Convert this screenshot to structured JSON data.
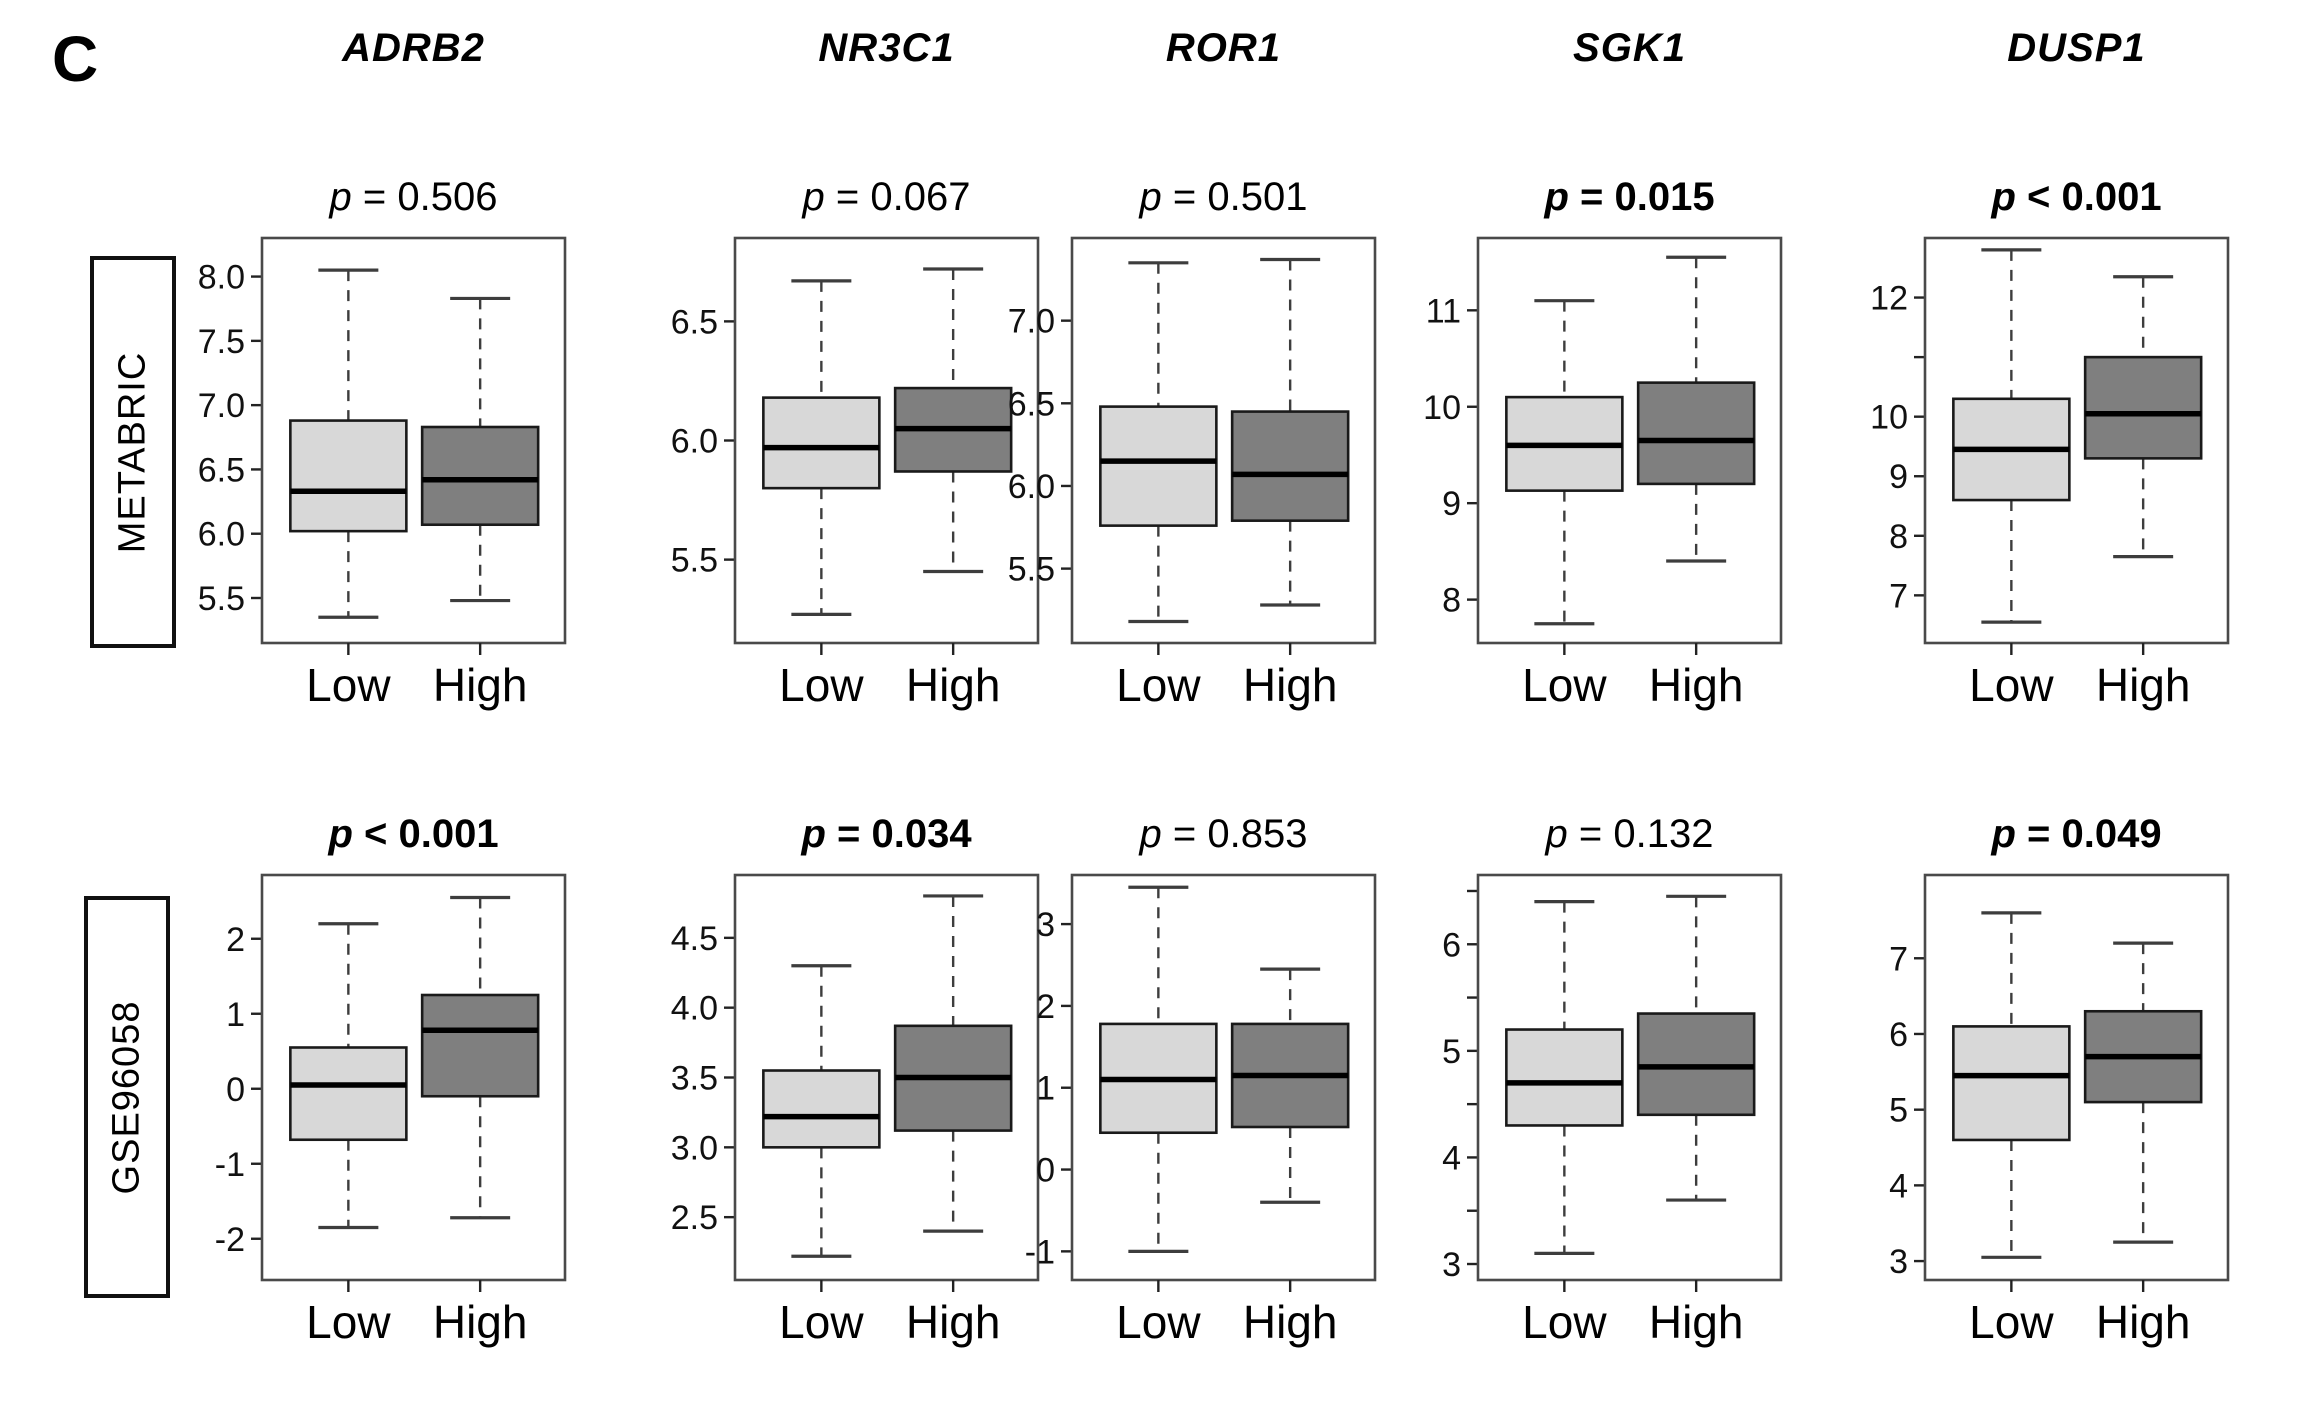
{
  "panel_label": "C",
  "header": {
    "genes": [
      "ADRB2",
      "NR3C1",
      "ROR1",
      "SGK1",
      "DUSP1"
    ]
  },
  "rows": [
    {
      "label": "METABRIC"
    },
    {
      "label": "GSE96058"
    }
  ],
  "chart_data": {
    "type": "boxplot",
    "categories": [
      "Low",
      "High"
    ],
    "legend_position": "none",
    "grid": false,
    "colors": {
      "low_fill": "#d8d8d8",
      "high_fill": "#7f7f7f",
      "median": "#000000",
      "frame": "#4a4a4a",
      "whisker": "#3d3d3d"
    },
    "plots": [
      {
        "gene": "ADRB2",
        "dataset": "METABRIC",
        "p_italic": "p",
        "p_rest": " = 0.506",
        "p_bold": false,
        "ylim": [
          5.15,
          8.3
        ],
        "yticks": [
          {
            "v": 5.5,
            "label": "5.5"
          },
          {
            "v": 6.0,
            "label": "6.0"
          },
          {
            "v": 6.5,
            "label": "6.5"
          },
          {
            "v": 7.0,
            "label": "7.0"
          },
          {
            "v": 7.5,
            "label": "7.5"
          },
          {
            "v": 8.0,
            "label": "8.0"
          }
        ],
        "groups": [
          {
            "label": "Low",
            "min": 5.35,
            "q1": 6.02,
            "median": 6.33,
            "q3": 6.88,
            "max": 8.05
          },
          {
            "label": "High",
            "min": 5.48,
            "q1": 6.07,
            "median": 6.42,
            "q3": 6.83,
            "max": 7.83
          }
        ]
      },
      {
        "gene": "NR3C1",
        "dataset": "METABRIC",
        "p_italic": "p",
        "p_rest": " = 0.067",
        "p_bold": false,
        "ylim": [
          5.15,
          6.85
        ],
        "yticks": [
          {
            "v": 5.5,
            "label": "5.5"
          },
          {
            "v": 6.0,
            "label": "6.0"
          },
          {
            "v": 6.5,
            "label": "6.5"
          }
        ],
        "groups": [
          {
            "label": "Low",
            "min": 5.27,
            "q1": 5.8,
            "median": 5.97,
            "q3": 6.18,
            "max": 6.67
          },
          {
            "label": "High",
            "min": 5.45,
            "q1": 5.87,
            "median": 6.05,
            "q3": 6.22,
            "max": 6.72
          }
        ]
      },
      {
        "gene": "ROR1",
        "dataset": "METABRIC",
        "p_italic": "p",
        "p_rest": " = 0.501",
        "p_bold": false,
        "ylim": [
          5.05,
          7.5
        ],
        "yticks": [
          {
            "v": 5.5,
            "label": "5.5"
          },
          {
            "v": 6.0,
            "label": "6.0"
          },
          {
            "v": 6.5,
            "label": "6.5"
          },
          {
            "v": 7.0,
            "label": "7.0"
          }
        ],
        "groups": [
          {
            "label": "Low",
            "min": 5.18,
            "q1": 5.76,
            "median": 6.15,
            "q3": 6.48,
            "max": 7.35
          },
          {
            "label": "High",
            "min": 5.28,
            "q1": 5.79,
            "median": 6.07,
            "q3": 6.45,
            "max": 7.37
          }
        ]
      },
      {
        "gene": "SGK1",
        "dataset": "METABRIC",
        "p_italic": "p",
        "p_rest": " = 0.015",
        "p_bold": true,
        "ylim": [
          7.55,
          11.75
        ],
        "yticks": [
          {
            "v": 8,
            "label": "8"
          },
          {
            "v": 9,
            "label": "9"
          },
          {
            "v": 10,
            "label": "10"
          },
          {
            "v": 11,
            "label": "11"
          }
        ],
        "groups": [
          {
            "label": "Low",
            "min": 7.75,
            "q1": 9.13,
            "median": 9.6,
            "q3": 10.1,
            "max": 11.1
          },
          {
            "label": "High",
            "min": 8.4,
            "q1": 9.2,
            "median": 9.65,
            "q3": 10.25,
            "max": 11.55
          }
        ]
      },
      {
        "gene": "DUSP1",
        "dataset": "METABRIC",
        "p_italic": "p",
        "p_rest": " < 0.001",
        "p_bold": true,
        "ylim": [
          6.2,
          13.0
        ],
        "yticks": [
          {
            "v": 7,
            "label": "7"
          },
          {
            "v": 8,
            "label": "8"
          },
          {
            "v": 9,
            "label": "9"
          },
          {
            "v": 10,
            "label": "10"
          },
          {
            "v": 11,
            "label": ""
          },
          {
            "v": 12,
            "label": "12"
          }
        ],
        "groups": [
          {
            "label": "Low",
            "min": 6.55,
            "q1": 8.6,
            "median": 9.45,
            "q3": 10.3,
            "max": 12.8
          },
          {
            "label": "High",
            "min": 7.65,
            "q1": 9.3,
            "median": 10.05,
            "q3": 11.0,
            "max": 12.35
          }
        ]
      },
      {
        "gene": "ADRB2",
        "dataset": "GSE96058",
        "p_italic": "p",
        "p_rest": " < 0.001",
        "p_bold": true,
        "ylim": [
          -2.55,
          2.85
        ],
        "yticks": [
          {
            "v": -2,
            "label": "-2"
          },
          {
            "v": -1,
            "label": "-1"
          },
          {
            "v": 0,
            "label": "0"
          },
          {
            "v": 1,
            "label": "1"
          },
          {
            "v": 2,
            "label": "2"
          }
        ],
        "groups": [
          {
            "label": "Low",
            "min": -1.85,
            "q1": -0.68,
            "median": 0.05,
            "q3": 0.55,
            "max": 2.2
          },
          {
            "label": "High",
            "min": -1.72,
            "q1": -0.1,
            "median": 0.78,
            "q3": 1.25,
            "max": 2.55
          }
        ]
      },
      {
        "gene": "NR3C1",
        "dataset": "GSE96058",
        "p_italic": "p",
        "p_rest": " = 0.034",
        "p_bold": true,
        "ylim": [
          2.05,
          4.95
        ],
        "yticks": [
          {
            "v": 2.5,
            "label": "2.5"
          },
          {
            "v": 3.0,
            "label": "3.0"
          },
          {
            "v": 3.5,
            "label": "3.5"
          },
          {
            "v": 4.0,
            "label": "4.0"
          },
          {
            "v": 4.5,
            "label": "4.5"
          }
        ],
        "groups": [
          {
            "label": "Low",
            "min": 2.22,
            "q1": 3.0,
            "median": 3.22,
            "q3": 3.55,
            "max": 4.3
          },
          {
            "label": "High",
            "min": 2.4,
            "q1": 3.12,
            "median": 3.5,
            "q3": 3.87,
            "max": 4.8
          }
        ]
      },
      {
        "gene": "ROR1",
        "dataset": "GSE96058",
        "p_italic": "p",
        "p_rest": " = 0.853",
        "p_bold": false,
        "ylim": [
          -1.35,
          3.6
        ],
        "yticks": [
          {
            "v": -1,
            "label": "-1"
          },
          {
            "v": 0,
            "label": "0"
          },
          {
            "v": 1,
            "label": "1"
          },
          {
            "v": 2,
            "label": "2"
          },
          {
            "v": 3,
            "label": "3"
          }
        ],
        "groups": [
          {
            "label": "Low",
            "min": -1.0,
            "q1": 0.45,
            "median": 1.1,
            "q3": 1.78,
            "max": 3.45
          },
          {
            "label": "High",
            "min": -0.4,
            "q1": 0.52,
            "median": 1.15,
            "q3": 1.78,
            "max": 2.45
          }
        ]
      },
      {
        "gene": "SGK1",
        "dataset": "GSE96058",
        "p_italic": "p",
        "p_rest": " = 0.132",
        "p_bold": false,
        "ylim": [
          2.85,
          6.65
        ],
        "yticks": [
          {
            "v": 3,
            "label": "3"
          },
          {
            "v": 3.5,
            "label": ""
          },
          {
            "v": 4,
            "label": "4"
          },
          {
            "v": 4.5,
            "label": ""
          },
          {
            "v": 5,
            "label": "5"
          },
          {
            "v": 5.5,
            "label": ""
          },
          {
            "v": 6,
            "label": "6"
          },
          {
            "v": 6.5,
            "label": ""
          }
        ],
        "groups": [
          {
            "label": "Low",
            "min": 3.1,
            "q1": 4.3,
            "median": 4.7,
            "q3": 5.2,
            "max": 6.4
          },
          {
            "label": "High",
            "min": 3.6,
            "q1": 4.4,
            "median": 4.85,
            "q3": 5.35,
            "max": 6.45
          }
        ]
      },
      {
        "gene": "DUSP1",
        "dataset": "GSE96058",
        "p_italic": "p",
        "p_rest": " = 0.049",
        "p_bold": true,
        "ylim": [
          2.75,
          8.1
        ],
        "yticks": [
          {
            "v": 3,
            "label": "3"
          },
          {
            "v": 4,
            "label": "4"
          },
          {
            "v": 5,
            "label": "5"
          },
          {
            "v": 6,
            "label": "6"
          },
          {
            "v": 7,
            "label": "7"
          }
        ],
        "groups": [
          {
            "label": "Low",
            "min": 3.05,
            "q1": 4.6,
            "median": 5.45,
            "q3": 6.1,
            "max": 7.6
          },
          {
            "label": "High",
            "min": 3.25,
            "q1": 5.1,
            "median": 5.7,
            "q3": 6.3,
            "max": 7.2
          }
        ]
      }
    ]
  }
}
